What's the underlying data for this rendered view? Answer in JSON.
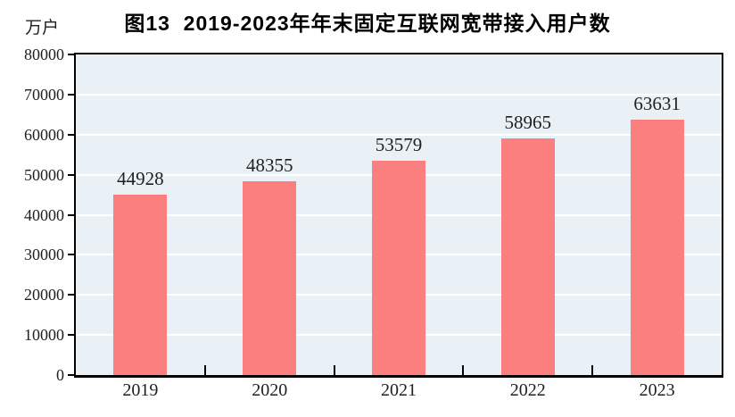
{
  "header": {
    "title": "图13  2019-2023年年末固定互联网宽带接入用户数",
    "unit_label": "万户"
  },
  "chart_data": {
    "type": "bar",
    "title": "图13  2019-2023年年末固定互联网宽带接入用户数",
    "ylabel": "万户",
    "xlabel": "",
    "categories": [
      "2019",
      "2020",
      "2021",
      "2022",
      "2023"
    ],
    "values": [
      44928,
      48355,
      53579,
      58965,
      63631
    ],
    "data_labels": [
      "44928",
      "48355",
      "53579",
      "58965",
      "63631"
    ],
    "ylim": [
      0,
      80000
    ],
    "y_tick_step": 10000,
    "y_tick_labels": [
      "0",
      "10000",
      "20000",
      "30000",
      "40000",
      "50000",
      "60000",
      "70000",
      "80000"
    ],
    "grid": "horizontal",
    "legend_position": "none",
    "colors": {
      "bar_fill": "#fc7f7f",
      "plot_background": "#e9f1f7",
      "gridline": "#ffffff",
      "axis": "#000000",
      "text": "#1f1f1f"
    }
  }
}
